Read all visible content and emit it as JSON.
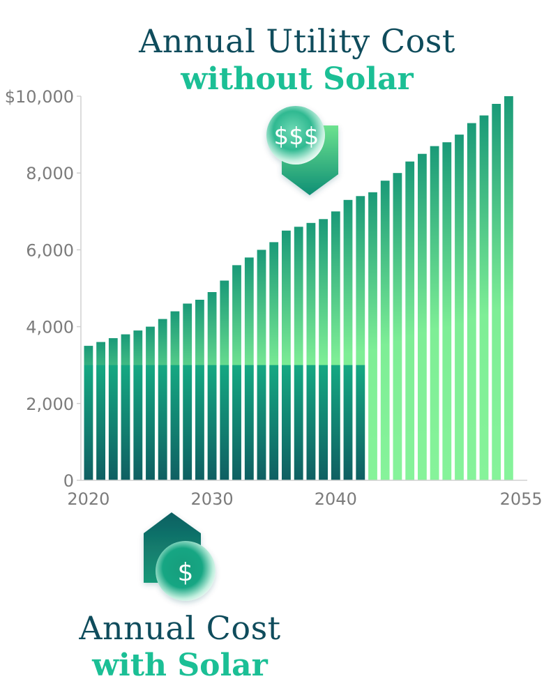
{
  "titles": {
    "top_line1": "Annual Utility Cost",
    "top_line2": "without Solar",
    "bottom_line1": "Annual Cost",
    "bottom_line2": "with Solar"
  },
  "icons": {
    "top_symbol": "$$$",
    "bottom_symbol": "$"
  },
  "colors": {
    "title_dark": "#0f4c5c",
    "title_accent": "#1bbf95",
    "bar_light_top": "#1a9a78",
    "bar_light_bottom": "#86f39a",
    "bar_dark_top": "#15a882",
    "bar_dark_bottom": "#0f5f62",
    "axis": "#7b7b7b"
  },
  "chart_data": {
    "type": "bar",
    "title": "Annual Utility Cost without Solar",
    "xlabel": "",
    "ylabel": "",
    "ylim": [
      0,
      10000
    ],
    "yticks": [
      0,
      2000,
      4000,
      6000,
      8000,
      10000
    ],
    "ytick_labels": [
      "0",
      "2,000",
      "4,000",
      "6,000",
      "8,000",
      "$10,000"
    ],
    "xticks": [
      2020,
      2030,
      2040,
      2055
    ],
    "xtick_labels": [
      "2020",
      "2030",
      "2040",
      "2055"
    ],
    "categories": [
      2020,
      2021,
      2022,
      2023,
      2024,
      2025,
      2026,
      2027,
      2028,
      2029,
      2030,
      2031,
      2032,
      2033,
      2034,
      2035,
      2036,
      2037,
      2038,
      2039,
      2040,
      2041,
      2042,
      2043,
      2044,
      2045,
      2046,
      2047,
      2048,
      2049,
      2050,
      2051,
      2052,
      2053,
      2054,
      2055
    ],
    "series": [
      {
        "name": "without Solar",
        "values": [
          3500,
          3600,
          3700,
          3800,
          3900,
          4000,
          4200,
          4400,
          4600,
          4700,
          4900,
          5200,
          5600,
          5800,
          6000,
          6200,
          6500,
          6600,
          6700,
          6800,
          7000,
          7300,
          7400,
          7500,
          7800,
          8000,
          8300,
          8500,
          8700,
          8800,
          9000,
          9300,
          9500,
          9800,
          10000,
          null
        ]
      },
      {
        "name": "with Solar",
        "values": [
          3000,
          3000,
          3000,
          3000,
          3000,
          3000,
          3000,
          3000,
          3000,
          3000,
          3000,
          3000,
          3000,
          3000,
          3000,
          3000,
          3000,
          3000,
          3000,
          3000,
          3000,
          3000,
          3000,
          0,
          0,
          0,
          0,
          0,
          0,
          0,
          0,
          0,
          0,
          0,
          0,
          null
        ]
      }
    ],
    "grid": false,
    "legend": "none"
  }
}
